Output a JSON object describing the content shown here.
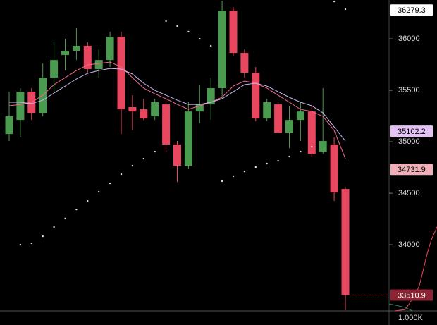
{
  "chart_data": {
    "type": "candlestick",
    "ylim": [
      33220,
      36377
    ],
    "yticks": [
      34000,
      34500,
      35000,
      35500,
      36000
    ],
    "up_color": "#4a9a4f",
    "down_color": "#e8475f",
    "open": [
      35075,
      35212,
      35486,
      35281,
      35623,
      35842,
      35884,
      35932,
      35706,
      35794,
      36020,
      35336,
      35315,
      35247,
      35363,
      34973,
      34767,
      35294,
      35363,
      35521,
      36274,
      35863,
      35671,
      35226,
      35363,
      35089,
      35212,
      35294,
      34904,
      34973,
      34541
    ],
    "close": [
      35247,
      35486,
      35281,
      35623,
      35794,
      35884,
      35932,
      35706,
      35794,
      36020,
      35315,
      35294,
      35226,
      35384,
      34973,
      34767,
      35294,
      35363,
      35521,
      36274,
      35863,
      35671,
      35226,
      35384,
      35089,
      35212,
      35294,
      34883,
      35007,
      34507,
      33510.9
    ],
    "high": [
      35486,
      35521,
      35521,
      35760,
      35966,
      36000,
      36103,
      35966,
      35897,
      36068,
      36068,
      35452,
      35418,
      35418,
      35418,
      35007,
      35384,
      35555,
      35623,
      36370,
      36308,
      35897,
      35726,
      35418,
      35384,
      35349,
      35384,
      35349,
      35521,
      35041,
      34561
    ],
    "low": [
      35007,
      35041,
      35212,
      35247,
      35486,
      35692,
      35794,
      35658,
      35623,
      35726,
      35075,
      35110,
      35212,
      35212,
      34904,
      34609,
      34733,
      35178,
      35212,
      35418,
      35829,
      35623,
      35199,
      35199,
      35075,
      34938,
      35007,
      34856,
      34883,
      34425,
      33363
    ],
    "series": [
      {
        "color": "#f06a8a",
        "values": [
          35350,
          35363,
          35384,
          35452,
          35555,
          35623,
          35692,
          35747,
          35760,
          35774,
          35726,
          35623,
          35521,
          35466,
          35418,
          35363,
          35315,
          35350,
          35384,
          35432,
          35541,
          35589,
          35569,
          35521,
          35452,
          35384,
          35315,
          35294,
          35247,
          35110,
          34836
        ]
      },
      {
        "color": "#c9b8f0",
        "values": [
          35384,
          35384,
          35370,
          35404,
          35473,
          35541,
          35610,
          35665,
          35692,
          35712,
          35706,
          35658,
          35569,
          35500,
          35452,
          35404,
          35363,
          35363,
          35384,
          35418,
          35486,
          35555,
          35569,
          35541,
          35486,
          35432,
          35384,
          35350,
          35281,
          35144,
          35007
        ]
      }
    ],
    "sar": [
      null,
      34000,
      34014,
      34082,
      34171,
      34254,
      34342,
      34425,
      34514,
      34596,
      34685,
      34767,
      34836,
      34904,
      36172,
      36124,
      36069,
      36000,
      35932,
      34617,
      34665,
      34712,
      34754,
      34788,
      34815,
      34856,
      34904,
      34952,
      null,
      36363,
      36288
    ],
    "price_tags": [
      {
        "value": 36279.3,
        "color": "#ffffff",
        "text_color": "#000000"
      },
      {
        "value": 35102.2,
        "color": "#e3c3f5",
        "text_color": "#000000"
      },
      {
        "value": 34731.9,
        "color": "#eeb0b6",
        "text_color": "#000000"
      },
      {
        "value": 33510.9,
        "color": "#8a2432",
        "text_color": "#ffffff"
      }
    ],
    "volume_label": "1.000K"
  }
}
